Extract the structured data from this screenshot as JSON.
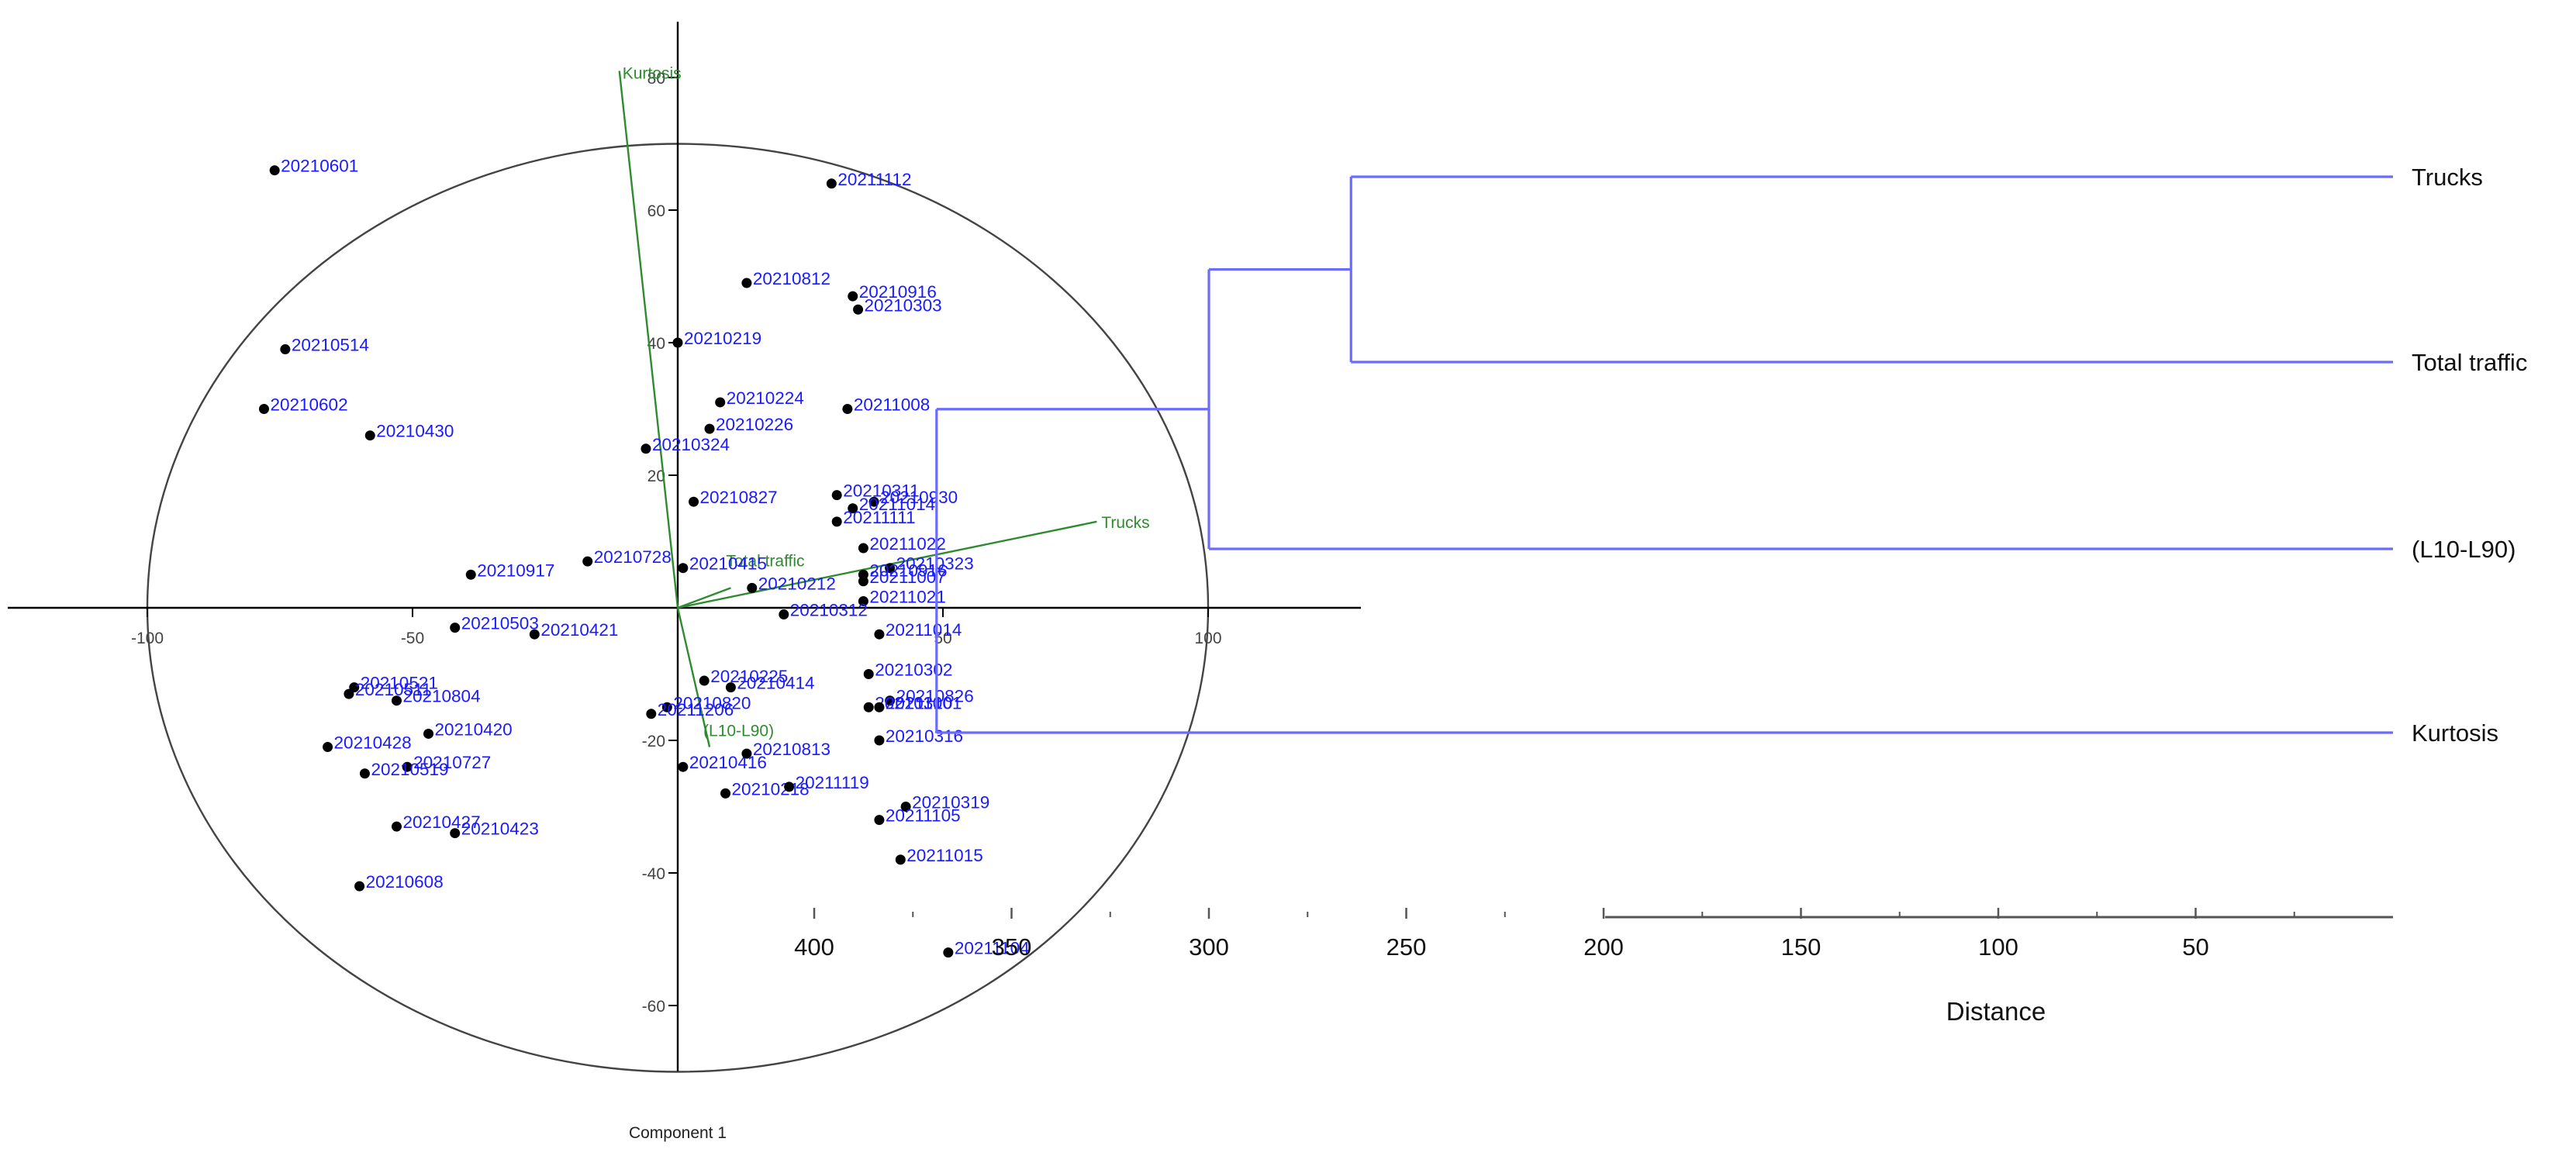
{
  "colors": {
    "point": "#000000",
    "point_label": "#1a1aff",
    "loading": "#2e8b2e",
    "axis": "#000000",
    "dendrogram": "#6b6bff",
    "text": "#111111"
  },
  "chart_data": [
    {
      "type": "scatter",
      "subtype": "pca-biplot",
      "xlabel": "Component 1",
      "ylabel": "",
      "xlim": [
        -100,
        100
      ],
      "ylim": [
        -60,
        80
      ],
      "x_ticks": [
        "-100",
        "-50",
        "50",
        "100"
      ],
      "y_ticks": [
        "80",
        "60",
        "40",
        "20",
        "-20",
        "-40",
        "-60"
      ],
      "confidence_ellipse": {
        "center": [
          0,
          0
        ],
        "rx": 100,
        "ry": 70
      },
      "points": [
        {
          "label": "20210601",
          "x": -76,
          "y": 66
        },
        {
          "label": "20211112",
          "x": 29,
          "y": 64
        },
        {
          "label": "20210812",
          "x": 13,
          "y": 49
        },
        {
          "label": "20210916",
          "x": 33,
          "y": 47
        },
        {
          "label": "20210303",
          "x": 34,
          "y": 45
        },
        {
          "label": "20210219",
          "x": 0,
          "y": 40
        },
        {
          "label": "20210514",
          "x": -74,
          "y": 39
        },
        {
          "label": "20210602",
          "x": -78,
          "y": 30
        },
        {
          "label": "20210224",
          "x": 8,
          "y": 31
        },
        {
          "label": "20211008",
          "x": 32,
          "y": 30
        },
        {
          "label": "20210226",
          "x": 6,
          "y": 27
        },
        {
          "label": "20210430",
          "x": -58,
          "y": 26
        },
        {
          "label": "20210324",
          "x": -6,
          "y": 24
        },
        {
          "label": "20210311",
          "x": 30,
          "y": 17
        },
        {
          "label": "20210930",
          "x": 37,
          "y": 16
        },
        {
          "label": "20210827",
          "x": 3,
          "y": 16
        },
        {
          "label": "20211014",
          "x": 33,
          "y": 15
        },
        {
          "label": "20211111",
          "x": 30,
          "y": 13
        },
        {
          "label": "20211022",
          "x": 35,
          "y": 9
        },
        {
          "label": "20210323",
          "x": 40,
          "y": 6
        },
        {
          "label": "20210728",
          "x": -17,
          "y": 7
        },
        {
          "label": "20210917",
          "x": -39,
          "y": 5
        },
        {
          "label": "20210415",
          "x": 1,
          "y": 6
        },
        {
          "label": "20210916",
          "x": 35,
          "y": 5
        },
        {
          "label": "20210212",
          "x": 14,
          "y": 3
        },
        {
          "label": "20211007",
          "x": 35,
          "y": 4
        },
        {
          "label": "20211021",
          "x": 35,
          "y": 1
        },
        {
          "label": "20210312",
          "x": 20,
          "y": -1
        },
        {
          "label": "20210503",
          "x": -42,
          "y": -3
        },
        {
          "label": "20210421",
          "x": -27,
          "y": -4
        },
        {
          "label": "20211014",
          "x": 38,
          "y": -4
        },
        {
          "label": "20210302",
          "x": 36,
          "y": -10
        },
        {
          "label": "20210521",
          "x": -61,
          "y": -12
        },
        {
          "label": "20210511",
          "x": -62,
          "y": -13
        },
        {
          "label": "20210225",
          "x": 5,
          "y": -11
        },
        {
          "label": "20210414",
          "x": 10,
          "y": -12
        },
        {
          "label": "20210804",
          "x": -53,
          "y": -14
        },
        {
          "label": "20210820",
          "x": -2,
          "y": -15
        },
        {
          "label": "20211206",
          "x": -5,
          "y": -16
        },
        {
          "label": "20210826",
          "x": 40,
          "y": -14
        },
        {
          "label": "20210310",
          "x": 36,
          "y": -15
        },
        {
          "label": "20211001",
          "x": 38,
          "y": -15
        },
        {
          "label": "20210420",
          "x": -47,
          "y": -19
        },
        {
          "label": "20210428",
          "x": -66,
          "y": -21
        },
        {
          "label": "20210316",
          "x": 38,
          "y": -20
        },
        {
          "label": "20210416",
          "x": 1,
          "y": -24
        },
        {
          "label": "20210813",
          "x": 13,
          "y": -22
        },
        {
          "label": "20210727",
          "x": -51,
          "y": -24
        },
        {
          "label": "20210519",
          "x": -59,
          "y": -25
        },
        {
          "label": "20210218",
          "x": 9,
          "y": -28
        },
        {
          "label": "20211119",
          "x": 21,
          "y": -27
        },
        {
          "label": "20210319",
          "x": 43,
          "y": -30
        },
        {
          "label": "20211105",
          "x": 38,
          "y": -32
        },
        {
          "label": "20210427",
          "x": -53,
          "y": -33
        },
        {
          "label": "20210423",
          "x": -42,
          "y": -34
        },
        {
          "label": "20211015",
          "x": 42,
          "y": -38
        },
        {
          "label": "20210608",
          "x": -60,
          "y": -42
        },
        {
          "label": "20211104",
          "x": 51,
          "y": -52
        }
      ],
      "loadings": [
        {
          "label": "Kurtosis",
          "x": -11,
          "y": 81
        },
        {
          "label": "Trucks",
          "x": 79,
          "y": 13
        },
        {
          "label": "Total traffic",
          "x": 10,
          "y": 3
        },
        {
          "label": "(L10-L90)",
          "x": 6,
          "y": -21
        }
      ]
    },
    {
      "type": "dendrogram",
      "xlabel": "Distance",
      "x_ticks": [
        "400",
        "350",
        "300",
        "250",
        "200",
        "150",
        "100",
        "50"
      ],
      "leaves": [
        "Trucks",
        "Total traffic",
        "(L10-L90)",
        "Kurtosis"
      ],
      "merges": [
        {
          "left": "Trucks",
          "right": "Total traffic",
          "distance": 264
        },
        {
          "left": "Trucks+Total traffic",
          "right": "(L10-L90)",
          "distance": 300
        },
        {
          "left": "Trucks+Total traffic+(L10-L90)",
          "right": "Kurtosis",
          "distance": 369
        }
      ]
    }
  ]
}
